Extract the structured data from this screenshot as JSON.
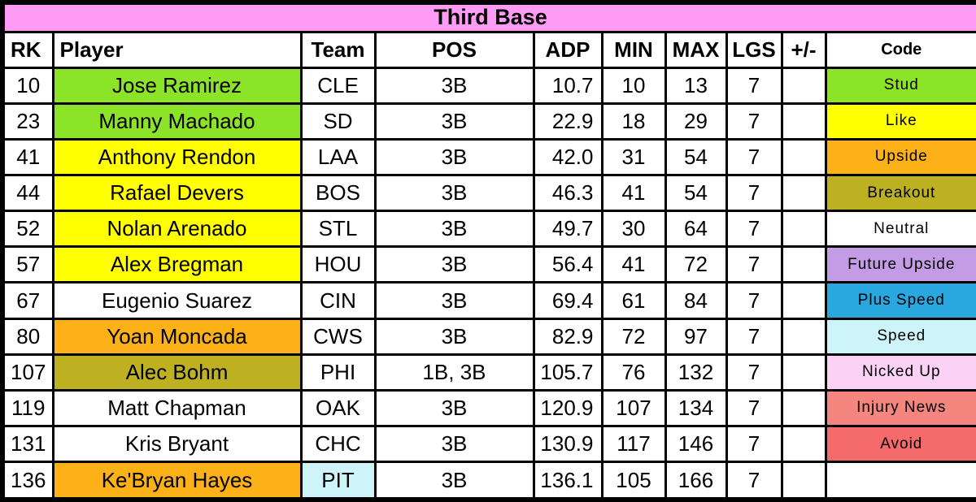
{
  "title": "Third Base",
  "palette": {
    "title_pink": "#FF9BF5",
    "green": "#8CE429",
    "yellow": "#FFFF00",
    "orange": "#FBB117",
    "olive": "#BDB121",
    "purple": "#C49BE5",
    "blue": "#29A8E0",
    "light_cyan": "#CDF4F8",
    "light_pink": "#FBD2F6",
    "salmon": "#F5867F",
    "red": "#F56B6B",
    "white": "#FFFFFF"
  },
  "columns": [
    {
      "key": "rk",
      "label": "RK",
      "align": "center",
      "header_align": "left"
    },
    {
      "key": "player",
      "label": "Player",
      "align": "center",
      "header_align": "left"
    },
    {
      "key": "team",
      "label": "Team",
      "align": "center",
      "header_align": "center"
    },
    {
      "key": "pos",
      "label": "POS",
      "align": "center",
      "header_align": "center"
    },
    {
      "key": "adp",
      "label": "ADP",
      "align": "right",
      "header_align": "center"
    },
    {
      "key": "min",
      "label": "MIN",
      "align": "center",
      "header_align": "center"
    },
    {
      "key": "max",
      "label": "MAX",
      "align": "center",
      "header_align": "center"
    },
    {
      "key": "lgs",
      "label": "LGS",
      "align": "center",
      "header_align": "center"
    },
    {
      "key": "plus_minus",
      "label": "+/-",
      "align": "center",
      "header_align": "center"
    },
    {
      "key": "code",
      "label": "Code",
      "align": "center",
      "header_align": "center"
    }
  ],
  "rows": [
    {
      "rk": "10",
      "player": "Jose Ramirez",
      "team": "CLE",
      "pos": "3B",
      "adp": "10.7",
      "min": "10",
      "max": "13",
      "lgs": "7",
      "plus_minus": "",
      "code": "Stud",
      "player_bg": "green",
      "team_bg": "white",
      "code_bg": "green"
    },
    {
      "rk": "23",
      "player": "Manny Machado",
      "team": "SD",
      "pos": "3B",
      "adp": "22.9",
      "min": "18",
      "max": "29",
      "lgs": "7",
      "plus_minus": "",
      "code": "Like",
      "player_bg": "green",
      "team_bg": "white",
      "code_bg": "yellow"
    },
    {
      "rk": "41",
      "player": "Anthony Rendon",
      "team": "LAA",
      "pos": "3B",
      "adp": "42.0",
      "min": "31",
      "max": "54",
      "lgs": "7",
      "plus_minus": "",
      "code": "Upside",
      "player_bg": "yellow",
      "team_bg": "white",
      "code_bg": "orange"
    },
    {
      "rk": "44",
      "player": "Rafael Devers",
      "team": "BOS",
      "pos": "3B",
      "adp": "46.3",
      "min": "41",
      "max": "54",
      "lgs": "7",
      "plus_minus": "",
      "code": "Breakout",
      "player_bg": "yellow",
      "team_bg": "white",
      "code_bg": "olive"
    },
    {
      "rk": "52",
      "player": "Nolan Arenado",
      "team": "STL",
      "pos": "3B",
      "adp": "49.7",
      "min": "30",
      "max": "64",
      "lgs": "7",
      "plus_minus": "",
      "code": "Neutral",
      "player_bg": "yellow",
      "team_bg": "white",
      "code_bg": "white"
    },
    {
      "rk": "57",
      "player": "Alex Bregman",
      "team": "HOU",
      "pos": "3B",
      "adp": "56.4",
      "min": "41",
      "max": "72",
      "lgs": "7",
      "plus_minus": "",
      "code": "Future Upside",
      "player_bg": "yellow",
      "team_bg": "white",
      "code_bg": "purple"
    },
    {
      "rk": "67",
      "player": "Eugenio Suarez",
      "team": "CIN",
      "pos": "3B",
      "adp": "69.4",
      "min": "61",
      "max": "84",
      "lgs": "7",
      "plus_minus": "",
      "code": "Plus Speed",
      "player_bg": "white",
      "team_bg": "white",
      "code_bg": "blue"
    },
    {
      "rk": "80",
      "player": "Yoan Moncada",
      "team": "CWS",
      "pos": "3B",
      "adp": "82.9",
      "min": "72",
      "max": "97",
      "lgs": "7",
      "plus_minus": "",
      "code": "Speed",
      "player_bg": "orange",
      "team_bg": "white",
      "code_bg": "light_cyan"
    },
    {
      "rk": "107",
      "player": "Alec Bohm",
      "team": "PHI",
      "pos": "1B, 3B",
      "adp": "105.7",
      "min": "76",
      "max": "132",
      "lgs": "7",
      "plus_minus": "",
      "code": "Nicked Up",
      "player_bg": "olive",
      "team_bg": "white",
      "code_bg": "light_pink"
    },
    {
      "rk": "119",
      "player": "Matt Chapman",
      "team": "OAK",
      "pos": "3B",
      "adp": "120.9",
      "min": "107",
      "max": "134",
      "lgs": "7",
      "plus_minus": "",
      "code": "Injury News",
      "player_bg": "white",
      "team_bg": "white",
      "code_bg": "salmon"
    },
    {
      "rk": "131",
      "player": "Kris Bryant",
      "team": "CHC",
      "pos": "3B",
      "adp": "130.9",
      "min": "117",
      "max": "146",
      "lgs": "7",
      "plus_minus": "",
      "code": "Avoid",
      "player_bg": "white",
      "team_bg": "white",
      "code_bg": "red"
    },
    {
      "rk": "136",
      "player": "Ke'Bryan Hayes",
      "team": "PIT",
      "pos": "3B",
      "adp": "136.1",
      "min": "105",
      "max": "166",
      "lgs": "7",
      "plus_minus": "",
      "code": "",
      "player_bg": "orange",
      "team_bg": "light_cyan",
      "code_bg": "white"
    }
  ]
}
